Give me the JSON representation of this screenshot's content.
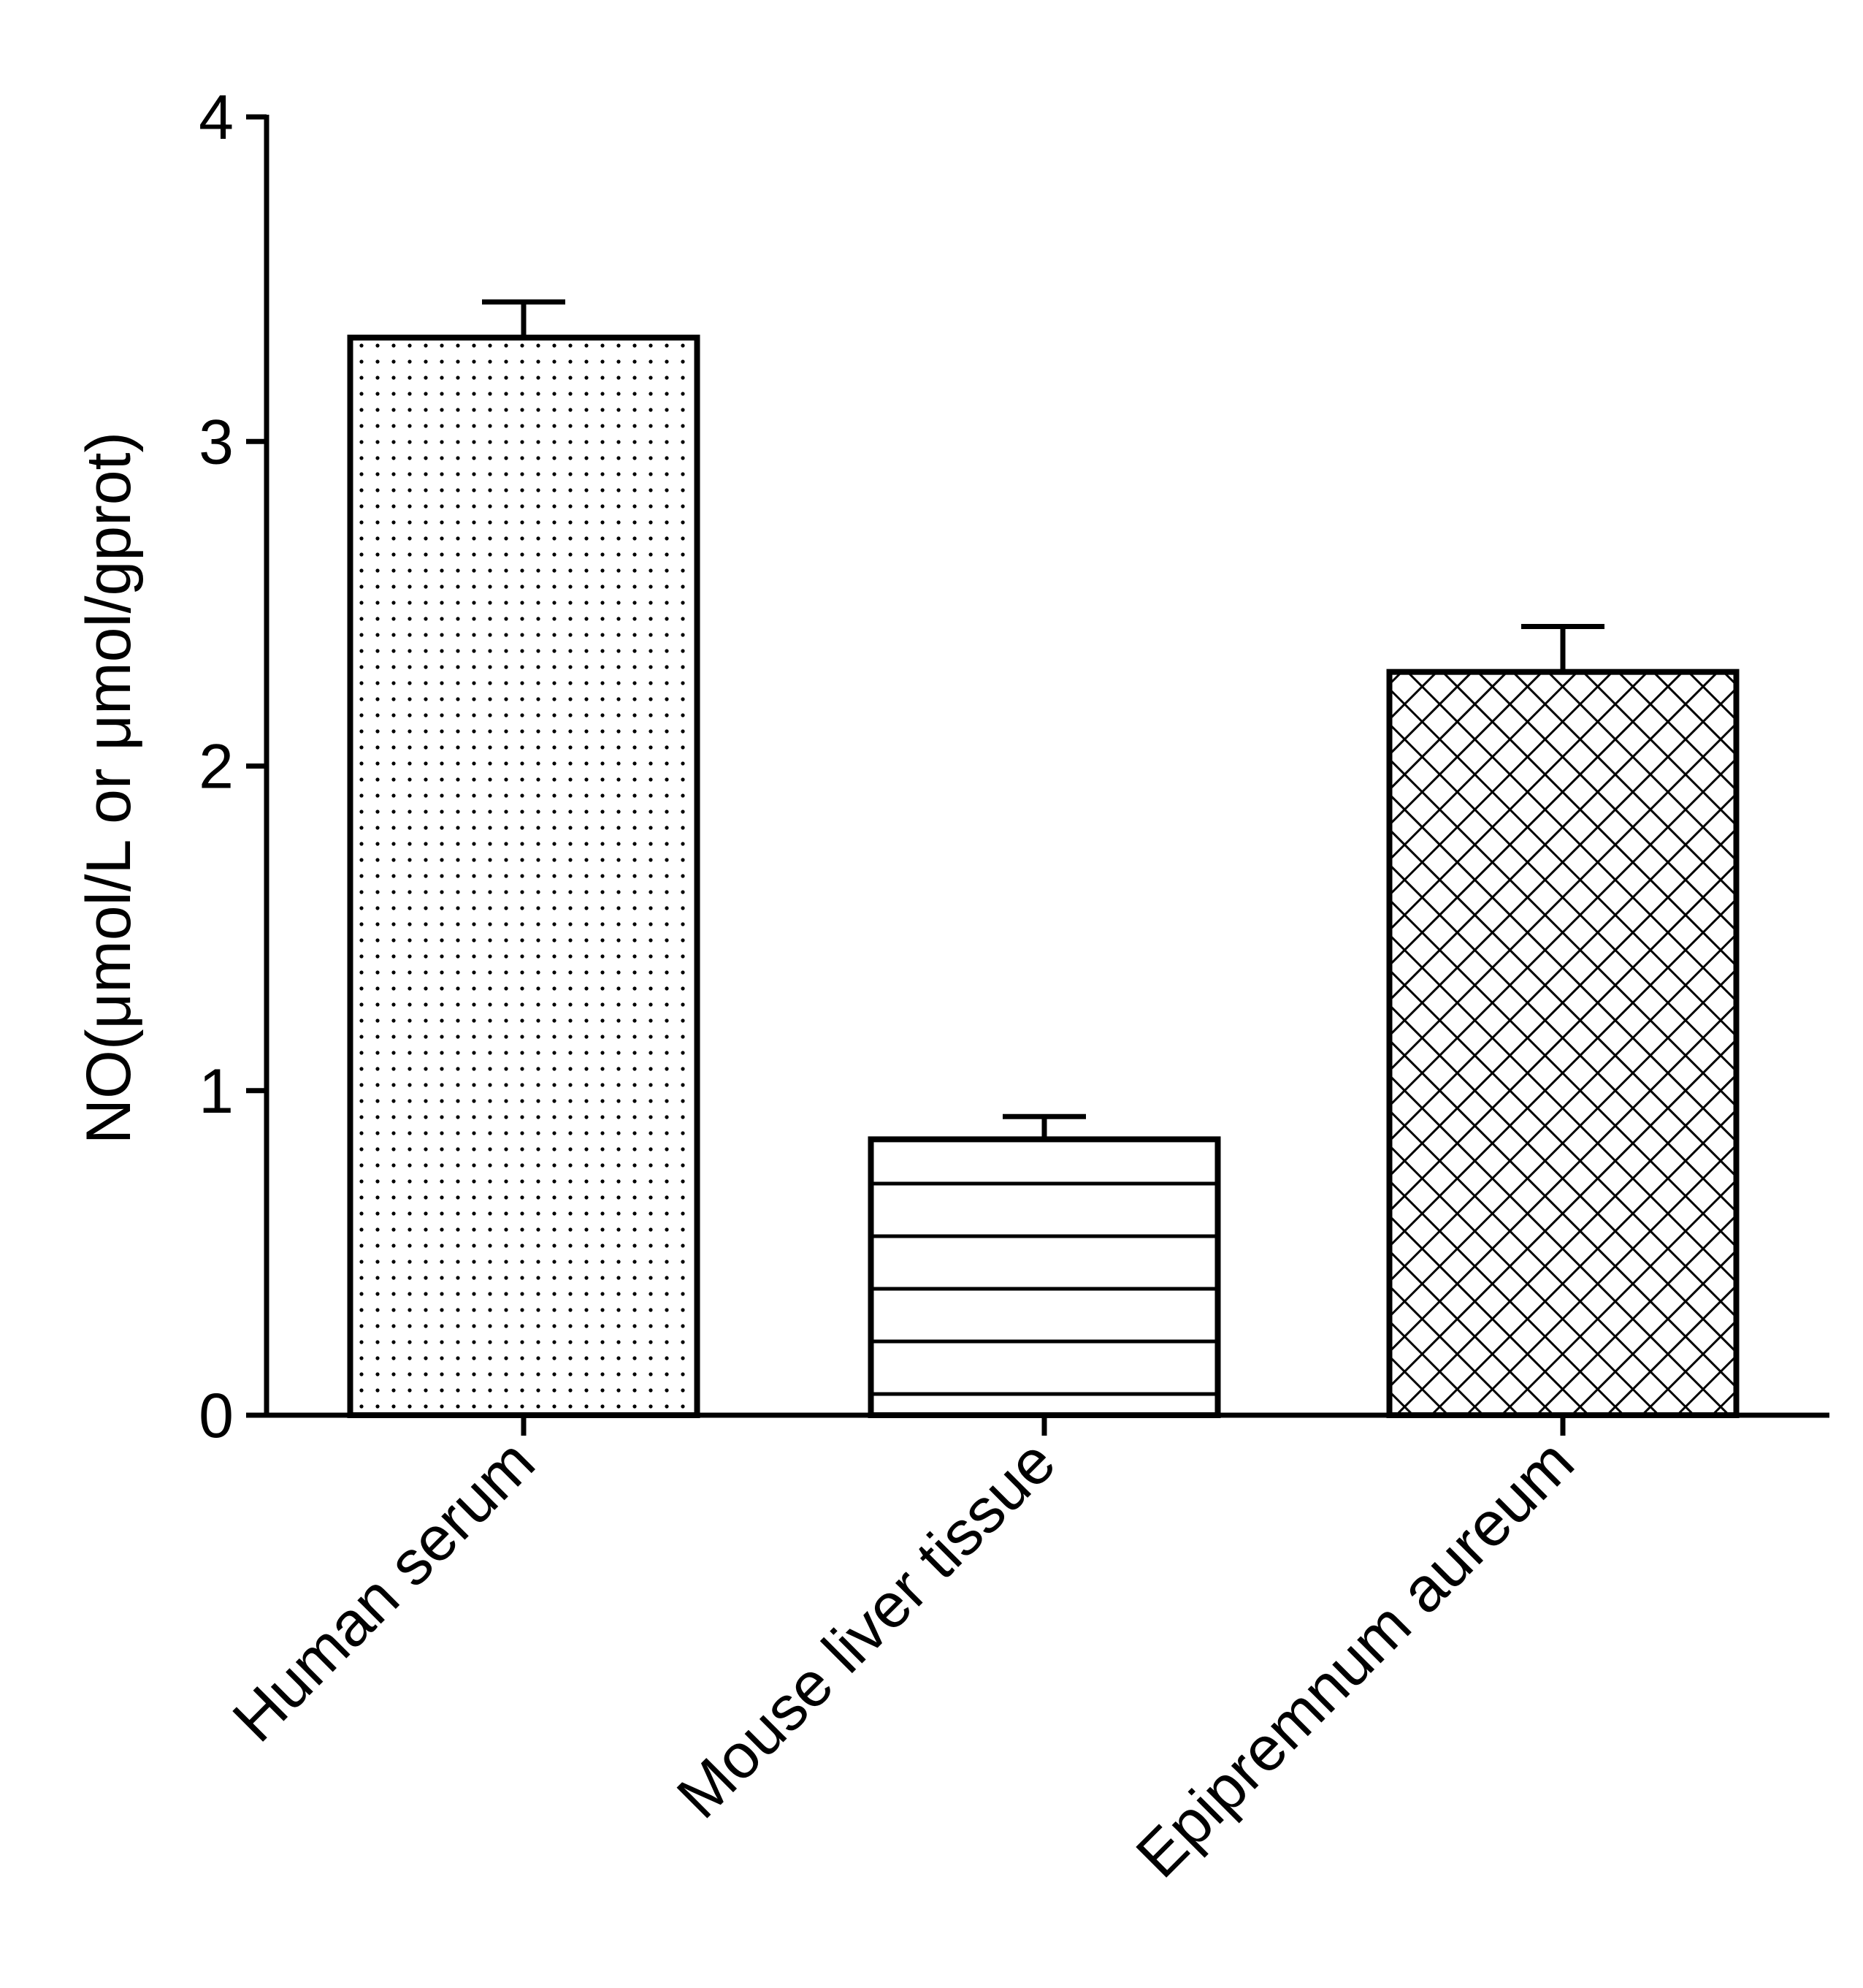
{
  "chart_data": {
    "type": "bar",
    "title": "",
    "xlabel": "",
    "ylabel": "NO(μmol/L or μmol/gprot)",
    "ylim": [
      0,
      4
    ],
    "yticks": [
      "0",
      "1",
      "2",
      "3",
      "4"
    ],
    "grid": false,
    "legend": "none",
    "categories": [
      "Human serum",
      "Mouse liver tissue",
      "Epipremnum aureum"
    ],
    "values": [
      3.32,
      0.85,
      2.29
    ],
    "errors": [
      0.11,
      0.07,
      0.14
    ],
    "fill_patterns": [
      "dots",
      "horizontal-lines",
      "crosshatch"
    ],
    "colors": {
      "stroke": "#000000",
      "background": "#ffffff"
    }
  }
}
